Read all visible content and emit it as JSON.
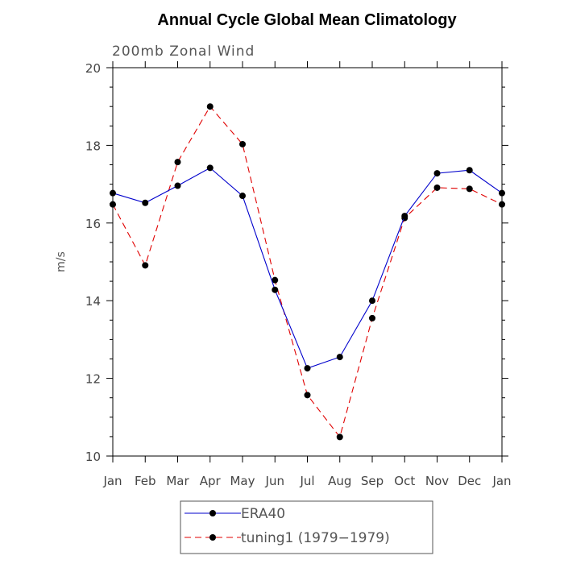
{
  "chart_data": {
    "type": "line",
    "title": "Annual Cycle Global Mean Climatology",
    "subtitle": "200mb Zonal Wind",
    "ylabel": "m/s",
    "xlabel": "",
    "ylim": [
      10,
      20
    ],
    "yticks": [
      10,
      12,
      14,
      16,
      18,
      20
    ],
    "categories": [
      "Jan",
      "Feb",
      "Mar",
      "Apr",
      "May",
      "Jun",
      "Jul",
      "Aug",
      "Sep",
      "Oct",
      "Nov",
      "Dec",
      "Jan"
    ],
    "grid": false,
    "legend_position": "bottom-center",
    "series": [
      {
        "name": "ERA40",
        "color": "#0000cc",
        "dash": "solid",
        "marker": "circle",
        "values": [
          16.77,
          16.52,
          16.96,
          17.42,
          16.7,
          14.28,
          12.26,
          12.55,
          14.0,
          16.18,
          17.28,
          17.36,
          16.77
        ]
      },
      {
        "name": "tuning1 (1979−1979)",
        "color": "#e00000",
        "dash": "dashed",
        "marker": "circle",
        "values": [
          16.48,
          14.91,
          17.57,
          19.0,
          18.03,
          14.53,
          11.57,
          10.49,
          13.55,
          16.13,
          16.91,
          16.88,
          16.48
        ]
      }
    ]
  }
}
